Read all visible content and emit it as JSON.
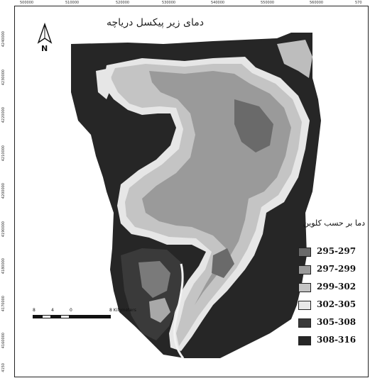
{
  "map": {
    "title": "دمای زیر پیکسل دریاچه",
    "north_label": "N",
    "x_ticks": [
      "500000",
      "510000",
      "520000",
      "530000",
      "540000",
      "550000",
      "560000",
      "570"
    ],
    "y_ticks": [
      "4240000",
      "4230000",
      "4220000",
      "4210000",
      "4200000",
      "4190000",
      "4180000",
      "4170000",
      "4160000",
      "4150"
    ]
  },
  "legend": {
    "title": "دما بر حسب کلوین",
    "items": [
      {
        "label": "295-297",
        "color": "#6a6a6a"
      },
      {
        "label": "297-299",
        "color": "#9a9a9a"
      },
      {
        "label": "299-302",
        "color": "#c4c4c4"
      },
      {
        "label": "302-305",
        "color": "#e8e8e8"
      },
      {
        "label": "305-308",
        "color": "#3a3a3a"
      },
      {
        "label": "308-316",
        "color": "#262626"
      }
    ]
  },
  "scalebar": {
    "ticks": [
      "8",
      "4",
      "0",
      "8 Kilometers"
    ]
  }
}
